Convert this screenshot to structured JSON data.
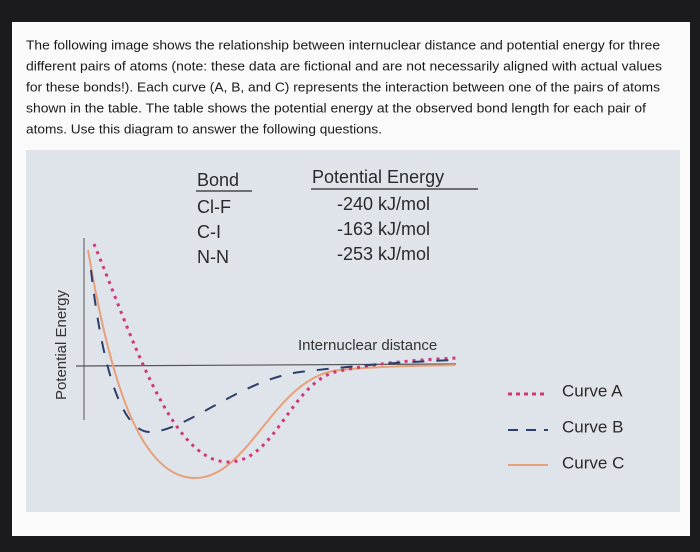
{
  "question": {
    "lines": [
      "The following image shows the relationship between internuclear distance and potential energy for three",
      "different pairs of atoms (note: these data are fictional and are not necessarily aligned with actual values",
      "for these bonds!). Each curve (A, B, and C) represents the interaction  between one of the pairs of atoms",
      "shown in the table. The table shows the potential energy at the observed bond length for each pair of",
      "atoms. Use this diagram to answer the following questions."
    ]
  },
  "table": {
    "headers": [
      "Bond",
      "Potential Energy"
    ],
    "rows": [
      [
        "Cl-F",
        "-240 kJ/mol"
      ],
      [
        "C-I",
        "-163 kJ/mol"
      ],
      [
        "N-N",
        "-253  kJ/mol"
      ]
    ]
  },
  "diagram": {
    "y_axis_label": "Potential Energy",
    "x_axis_label": "Internuclear distance"
  },
  "legend": [
    {
      "label": "Curve A"
    },
    {
      "label": "Curve B"
    },
    {
      "label": "Curve C"
    }
  ]
}
